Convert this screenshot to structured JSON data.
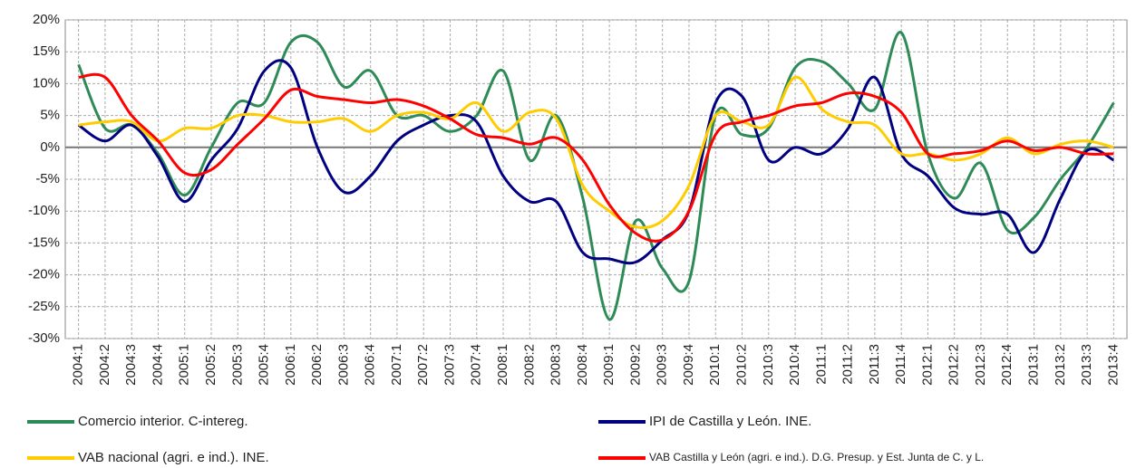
{
  "chart_data": {
    "type": "line",
    "categories": [
      "2004:1",
      "2004:2",
      "2004:3",
      "2004:4",
      "2005:1",
      "2005:2",
      "2005:3",
      "2005:4",
      "2006:1",
      "2006:2",
      "2006:3",
      "2006:4",
      "2007:1",
      "2007:2",
      "2007:3",
      "2007:4",
      "2008:1",
      "2008:2",
      "2008:3",
      "2008:4",
      "2009:1",
      "2009:2",
      "2009:3",
      "2009:4",
      "2010:1",
      "2010:2",
      "2010:3",
      "2010:4",
      "2011:1",
      "2011:2",
      "2011:3",
      "2011:4",
      "2012:1",
      "2012:2",
      "2012:3",
      "2012:4",
      "2013:1",
      "2013:2",
      "2013:3",
      "2013:4"
    ],
    "series": [
      {
        "name": "Comercio interior. C-intereg.",
        "color": "#2e8b57",
        "values": [
          13,
          3,
          3.5,
          -1,
          -7.5,
          0,
          7,
          7,
          16.5,
          16.5,
          9.5,
          12,
          5,
          5,
          2.5,
          5,
          12,
          -2,
          5,
          -8,
          -27,
          -11.5,
          -19,
          -21,
          5,
          2,
          3,
          12.5,
          13.5,
          10,
          6,
          18,
          -1,
          -8,
          -2.5,
          -13,
          -11,
          -5,
          0,
          7
        ]
      },
      {
        "name": "IPI de Castilla y León. INE.",
        "color": "#000080",
        "values": [
          3.5,
          1,
          3.5,
          -1.5,
          -8.5,
          -2,
          3,
          12,
          12.5,
          0,
          -7,
          -4.5,
          1,
          3.5,
          5,
          4,
          -4.5,
          -8.5,
          -8.5,
          -16.5,
          -17.5,
          -18,
          -14.5,
          -10,
          7,
          8,
          -2,
          0,
          -1,
          3,
          11,
          -1,
          -4.5,
          -9.5,
          -10.5,
          -10.5,
          -16.5,
          -8,
          -0.5,
          -2
        ]
      },
      {
        "name": "VAB nacional (agri. e ind.). INE.",
        "color": "#ffcc00",
        "values": [
          3.5,
          4,
          4,
          1,
          3,
          3,
          5,
          5,
          4,
          4,
          4.5,
          2.5,
          5,
          5.5,
          4.5,
          7,
          2.5,
          5.5,
          4.5,
          -6,
          -10,
          -12.5,
          -11.5,
          -6,
          5,
          4,
          3.5,
          11,
          6,
          4,
          3.5,
          -1,
          -1,
          -2,
          -1,
          1.5,
          -1,
          0.5,
          1,
          0
        ]
      },
      {
        "name": "VAB Castilla y León (agri. e ind.). D.G. Presup. y Est. Junta de C. y L.",
        "color": "#ff0000",
        "values": [
          11,
          11,
          5,
          1,
          -4,
          -3.5,
          0.5,
          4.5,
          9,
          8,
          7.5,
          7,
          7.5,
          6.5,
          4.5,
          2,
          1.5,
          0.5,
          1.5,
          -2,
          -9,
          -13.5,
          -14.5,
          -10,
          2,
          4,
          5,
          6.5,
          7,
          8.5,
          8,
          5.5,
          -1,
          -1,
          -0.5,
          1,
          -0.5,
          0,
          -1,
          -1
        ]
      }
    ],
    "ylim": [
      -30,
      20
    ],
    "yticks": [
      {
        "value": -30,
        "label": "-30%"
      },
      {
        "value": -25,
        "label": "-25%"
      },
      {
        "value": -20,
        "label": "-20%"
      },
      {
        "value": -15,
        "label": "-15%"
      },
      {
        "value": -10,
        "label": "-10%"
      },
      {
        "value": -5,
        "label": "-5%"
      },
      {
        "value": 0,
        "label": "0%"
      },
      {
        "value": 5,
        "label": "5%"
      },
      {
        "value": 10,
        "label": "10%"
      },
      {
        "value": 15,
        "label": "15%"
      },
      {
        "value": 20,
        "label": "20%"
      }
    ],
    "grid": true,
    "legend": "bottom"
  }
}
